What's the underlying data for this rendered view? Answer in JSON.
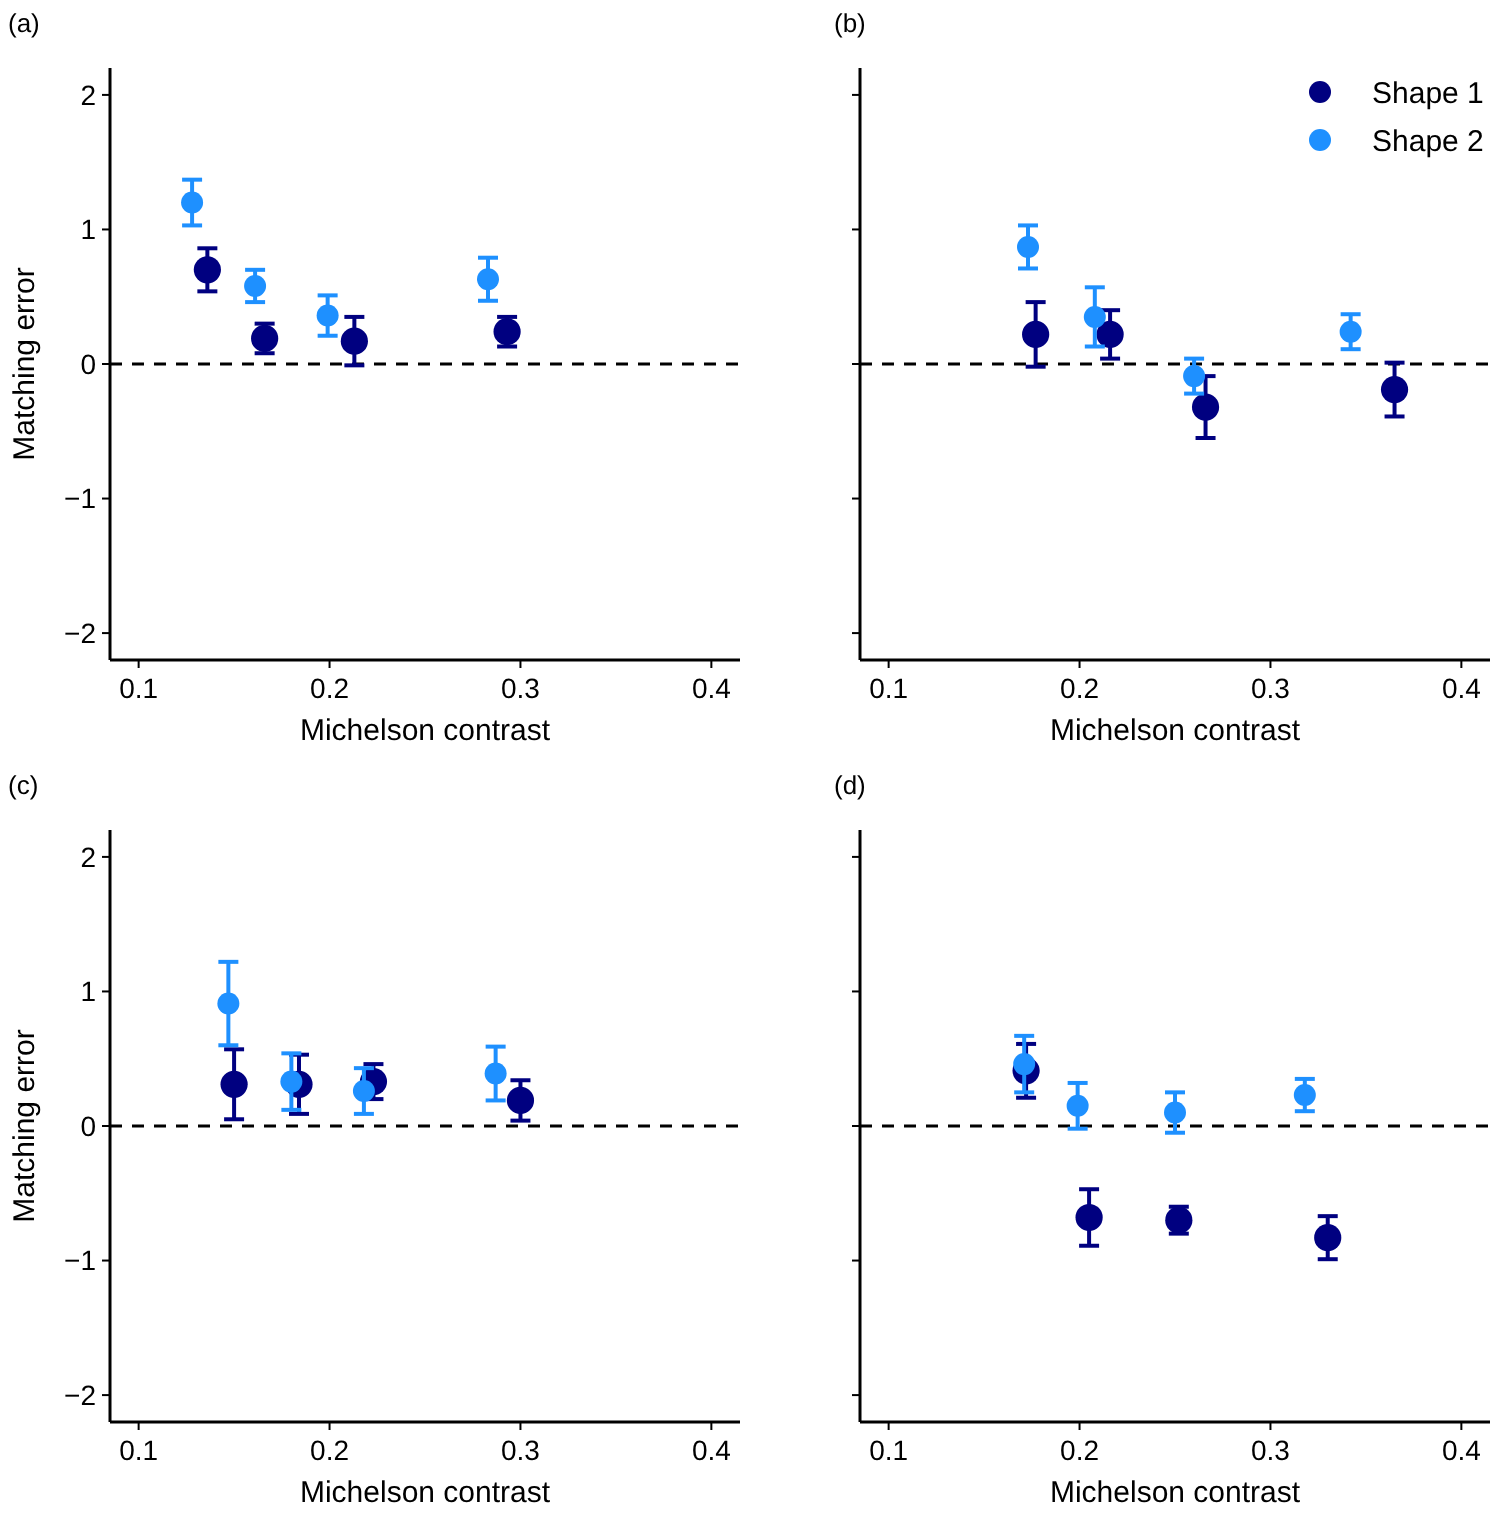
{
  "chart_data": [
    {
      "type": "scatter",
      "title": "(a)",
      "xlabel": "Michelson contrast",
      "ylabel": "Matching error",
      "xlim": [
        0.085,
        0.415
      ],
      "xticks": [
        0.1,
        0.2,
        0.3,
        0.4
      ],
      "ylim": [
        -2.2,
        2.2
      ],
      "yticks": [
        -2,
        -1,
        0,
        1,
        2
      ],
      "marker": "circle",
      "legend": false,
      "grid": false,
      "ref_lines": [
        {
          "axis": "y",
          "value": 0,
          "line_style": "dashed",
          "color": "#000000"
        }
      ],
      "series": [
        {
          "color": "#000080",
          "x": [
            0.136,
            0.166,
            0.213,
            0.293
          ],
          "values": [
            0.7,
            0.19,
            0.17,
            0.24
          ],
          "errors": [
            0.16,
            0.11,
            0.18,
            0.11
          ]
        },
        {
          "color": "#1e90ff",
          "x": [
            0.128,
            0.161,
            0.199,
            0.283
          ],
          "values": [
            1.2,
            0.58,
            0.36,
            0.63
          ],
          "errors": [
            0.17,
            0.12,
            0.15,
            0.16
          ]
        }
      ]
    },
    {
      "type": "scatter",
      "title": "(b)",
      "xlabel": "Michelson contrast",
      "xlim": [
        0.085,
        0.415
      ],
      "xticks": [
        0.1,
        0.2,
        0.3,
        0.4
      ],
      "ylim": [
        -2.2,
        2.2
      ],
      "yticks": [
        -2,
        -1,
        0,
        1,
        2
      ],
      "tick_labels": "x",
      "marker": "circle",
      "legend": "top right",
      "grid": false,
      "ref_lines": [
        {
          "axis": "y",
          "value": 0,
          "line_style": "dashed",
          "color": "#000000"
        }
      ],
      "series": [
        {
          "name": "Shape 1",
          "color": "#000080",
          "x": [
            0.177,
            0.216,
            0.266,
            0.365
          ],
          "values": [
            0.22,
            0.22,
            -0.32,
            -0.19
          ],
          "errors": [
            0.24,
            0.18,
            0.23,
            0.2
          ]
        },
        {
          "name": "Shape 2",
          "color": "#1e90ff",
          "x": [
            0.173,
            0.208,
            0.26,
            0.342
          ],
          "values": [
            0.87,
            0.35,
            -0.09,
            0.24
          ],
          "errors": [
            0.16,
            0.22,
            0.13,
            0.13
          ]
        }
      ]
    },
    {
      "type": "scatter",
      "title": "(c)",
      "xlabel": "Michelson contrast",
      "ylabel": "Matching error",
      "xlim": [
        0.085,
        0.415
      ],
      "xticks": [
        0.1,
        0.2,
        0.3,
        0.4
      ],
      "ylim": [
        -2.2,
        2.2
      ],
      "yticks": [
        -2,
        -1,
        0,
        1,
        2
      ],
      "marker": "circle",
      "legend": false,
      "grid": false,
      "ref_lines": [
        {
          "axis": "y",
          "value": 0,
          "line_style": "dashed",
          "color": "#000000"
        }
      ],
      "series": [
        {
          "color": "#000080",
          "x": [
            0.15,
            0.184,
            0.223,
            0.3
          ],
          "values": [
            0.31,
            0.31,
            0.33,
            0.19
          ],
          "errors": [
            0.26,
            0.22,
            0.13,
            0.15
          ]
        },
        {
          "color": "#1e90ff",
          "x": [
            0.147,
            0.18,
            0.218,
            0.287
          ],
          "values": [
            0.91,
            0.33,
            0.26,
            0.39
          ],
          "errors": [
            0.31,
            0.21,
            0.17,
            0.2
          ]
        }
      ]
    },
    {
      "type": "scatter",
      "title": "(d)",
      "xlabel": "Michelson contrast",
      "xlim": [
        0.085,
        0.415
      ],
      "xticks": [
        0.1,
        0.2,
        0.3,
        0.4
      ],
      "ylim": [
        -2.2,
        2.2
      ],
      "yticks": [
        -2,
        -1,
        0,
        1,
        2
      ],
      "tick_labels": "x",
      "marker": "circle",
      "legend": false,
      "grid": false,
      "ref_lines": [
        {
          "axis": "y",
          "value": 0,
          "line_style": "dashed",
          "color": "#000000"
        }
      ],
      "series": [
        {
          "color": "#000080",
          "x": [
            0.172,
            0.205,
            0.252,
            0.33
          ],
          "values": [
            0.41,
            -0.68,
            -0.7,
            -0.83
          ],
          "errors": [
            0.2,
            0.21,
            0.1,
            0.16
          ]
        },
        {
          "color": "#1e90ff",
          "x": [
            0.171,
            0.199,
            0.25,
            0.318
          ],
          "values": [
            0.46,
            0.15,
            0.1,
            0.23
          ],
          "errors": [
            0.21,
            0.17,
            0.15,
            0.12
          ]
        }
      ]
    }
  ]
}
